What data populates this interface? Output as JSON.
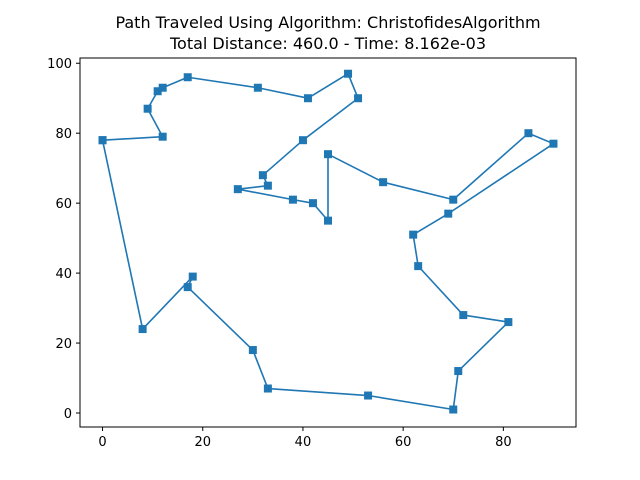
{
  "chart_data": {
    "type": "line",
    "title": "Path Traveled Using Algorithm: ChristofidesAlgorithm",
    "subtitle": "Total Distance: 460.0 - Time: 8.162e-03",
    "xlabel": "",
    "ylabel": "",
    "xlim": [
      -4.5,
      94.5
    ],
    "ylim": [
      -4,
      101.5
    ],
    "xticks": [
      0,
      20,
      40,
      60,
      80
    ],
    "yticks": [
      0,
      20,
      40,
      60,
      80,
      100
    ],
    "grid": false,
    "marker": "square",
    "color": "#1f77b4",
    "points": [
      [
        0,
        78
      ],
      [
        12,
        79
      ],
      [
        9,
        87
      ],
      [
        11,
        92
      ],
      [
        12,
        93
      ],
      [
        17,
        96
      ],
      [
        31,
        93
      ],
      [
        41,
        90
      ],
      [
        49,
        97
      ],
      [
        51,
        90
      ],
      [
        40,
        78
      ],
      [
        32,
        68
      ],
      [
        33,
        65
      ],
      [
        27,
        64
      ],
      [
        38,
        61
      ],
      [
        42,
        60
      ],
      [
        45,
        55
      ],
      [
        45,
        74
      ],
      [
        56,
        66
      ],
      [
        70,
        61
      ],
      [
        85,
        80
      ],
      [
        90,
        77
      ],
      [
        69,
        57
      ],
      [
        62,
        51
      ],
      [
        63,
        42
      ],
      [
        72,
        28
      ],
      [
        81,
        26
      ],
      [
        71,
        12
      ],
      [
        70,
        1
      ],
      [
        53,
        5
      ],
      [
        33,
        7
      ],
      [
        30,
        18
      ],
      [
        17,
        36
      ],
      [
        18,
        39
      ],
      [
        8,
        24
      ],
      [
        0,
        78
      ]
    ]
  }
}
